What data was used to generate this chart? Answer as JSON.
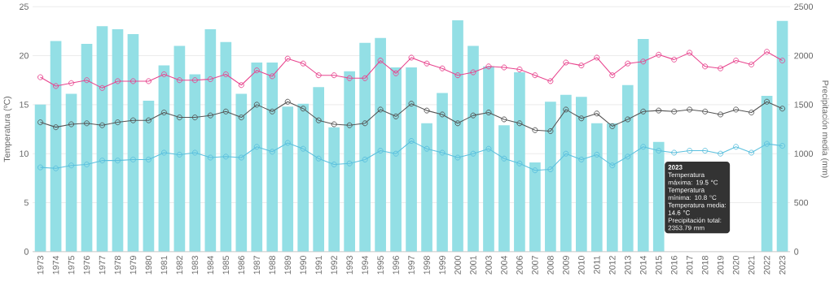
{
  "chart_data": {
    "type": "line",
    "categories": [
      "1973",
      "1974",
      "1975",
      "1976",
      "1977",
      "1978",
      "1979",
      "1980",
      "1981",
      "1982",
      "1983",
      "1984",
      "1985",
      "1986",
      "1987",
      "1988",
      "1989",
      "1990",
      "1991",
      "1992",
      "1993",
      "1994",
      "1995",
      "1996",
      "1997",
      "1998",
      "1999",
      "2000",
      "2001",
      "2003",
      "2004",
      "2006",
      "2007",
      "2008",
      "2009",
      "2010",
      "2011",
      "2012",
      "2013",
      "2014",
      "2015",
      "2016",
      "2017",
      "2018",
      "2019",
      "2020",
      "2021",
      "2022",
      "2023"
    ],
    "ylabel": "Temperatura (ºC)",
    "y2label": "Precipitación media (mm)",
    "ylim": [
      0,
      25
    ],
    "yticks": [
      0,
      5,
      10,
      15,
      20,
      25
    ],
    "y2lim": [
      0,
      2500
    ],
    "y2ticks": [
      0,
      500,
      1000,
      1500,
      2000,
      2500
    ],
    "grid": true,
    "marker": "circle",
    "line_style": "solid",
    "series": [
      {
        "type": "bar",
        "axis": "y2",
        "color": "#93dfe5",
        "values": [
          1500,
          2150,
          1610,
          2120,
          2300,
          2270,
          2220,
          1540,
          1900,
          2100,
          1810,
          2270,
          2140,
          1610,
          1930,
          1930,
          1480,
          1510,
          1680,
          1270,
          1840,
          2130,
          2180,
          1880,
          1880,
          1310,
          1620,
          2360,
          2100,
          1890,
          1290,
          1830,
          910,
          1530,
          1600,
          1580,
          1310,
          1310,
          1700,
          2170,
          1120,
          null,
          null,
          null,
          null,
          null,
          null,
          1590,
          2353.79
        ]
      },
      {
        "color": "#e8468f",
        "values": [
          17.8,
          16.9,
          17.2,
          17.5,
          16.7,
          17.4,
          17.4,
          17.4,
          18.1,
          17.5,
          17.5,
          17.6,
          18.1,
          17.0,
          18.5,
          17.9,
          19.7,
          19.2,
          18.0,
          18.0,
          17.7,
          17.7,
          19.5,
          18.2,
          19.8,
          19.2,
          18.7,
          18.0,
          18.3,
          18.9,
          18.8,
          18.6,
          18.0,
          17.4,
          19.3,
          19.0,
          19.8,
          18.0,
          19.2,
          19.4,
          20.1,
          19.6,
          20.3,
          18.9,
          18.7,
          19.5,
          19.1,
          20.4,
          19.5
        ]
      },
      {
        "color": "#5bc0de",
        "values": [
          8.6,
          8.5,
          8.8,
          8.9,
          9.3,
          9.3,
          9.4,
          9.4,
          10.1,
          9.9,
          10.1,
          9.6,
          9.7,
          9.6,
          10.7,
          10.2,
          11.1,
          10.5,
          9.5,
          8.9,
          9.0,
          9.4,
          10.3,
          10.0,
          11.3,
          10.5,
          10.1,
          9.6,
          10.0,
          10.5,
          9.5,
          9.0,
          8.3,
          8.4,
          10.0,
          9.4,
          9.9,
          8.8,
          9.7,
          10.7,
          10.3,
          10.1,
          10.3,
          10.3,
          10.0,
          10.7,
          10.1,
          11.0,
          10.8
        ]
      },
      {
        "color": "#555555",
        "values": [
          13.2,
          12.7,
          13.0,
          13.1,
          12.9,
          13.2,
          13.4,
          13.4,
          14.2,
          13.7,
          13.7,
          13.9,
          14.3,
          13.7,
          15.0,
          14.3,
          15.3,
          14.6,
          13.4,
          13.0,
          12.9,
          13.1,
          14.5,
          13.8,
          15.1,
          14.4,
          14.0,
          13.1,
          13.9,
          14.2,
          13.5,
          13.1,
          12.4,
          12.3,
          14.5,
          13.6,
          14.1,
          12.8,
          13.5,
          14.3,
          14.4,
          14.3,
          14.5,
          14.3,
          14.0,
          14.5,
          14.2,
          15.3,
          14.6
        ]
      }
    ],
    "annotations": [
      "2023",
      "Temperatura máxima: 19.5 °C",
      "Temperatura mínima: 10.8 °C",
      "Temperatura media: 14.6 °C",
      "Precipitación total: 2353.79 mm"
    ]
  }
}
